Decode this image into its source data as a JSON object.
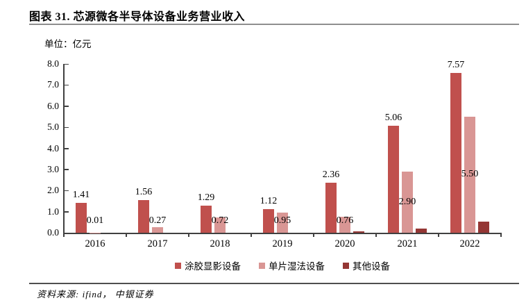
{
  "header": {
    "title": "图表 31. 芯源微各半导体设备业务营业收入"
  },
  "unit_label": "单位：亿元",
  "footer": {
    "source": "资料来源: ifind， 中银证券"
  },
  "chart_data": {
    "type": "bar",
    "title": "芯源微各半导体设备业务营业收入",
    "unit": "亿元",
    "categories": [
      "2016",
      "2017",
      "2018",
      "2019",
      "2020",
      "2021",
      "2022"
    ],
    "series": [
      {
        "name": "涂胶显影设备",
        "color": "#C0504D",
        "values": [
          1.41,
          1.56,
          1.29,
          1.12,
          2.36,
          5.06,
          7.57
        ],
        "labels": [
          "1.41",
          "1.56",
          "1.29",
          "1.12",
          "2.36",
          "5.06",
          "7.57"
        ],
        "label_position": "above"
      },
      {
        "name": "单片湿法设备",
        "color": "#D99694",
        "values": [
          0.01,
          0.27,
          0.72,
          0.95,
          0.76,
          2.9,
          5.5
        ],
        "labels": [
          "0.01",
          "0.27",
          "0.72",
          "0.95",
          "0.76",
          "2.90",
          "5.50"
        ],
        "label_position": "inside-center"
      },
      {
        "name": "其他设备",
        "color": "#943634",
        "values": [
          0,
          0,
          0,
          0,
          0.08,
          0.2,
          0.53
        ],
        "labels": null,
        "label_position": "none"
      }
    ],
    "ylim": [
      0,
      8
    ],
    "ytick_step": 1.0,
    "ytick_decimals": 1,
    "grid": false,
    "legend_position": "bottom"
  }
}
